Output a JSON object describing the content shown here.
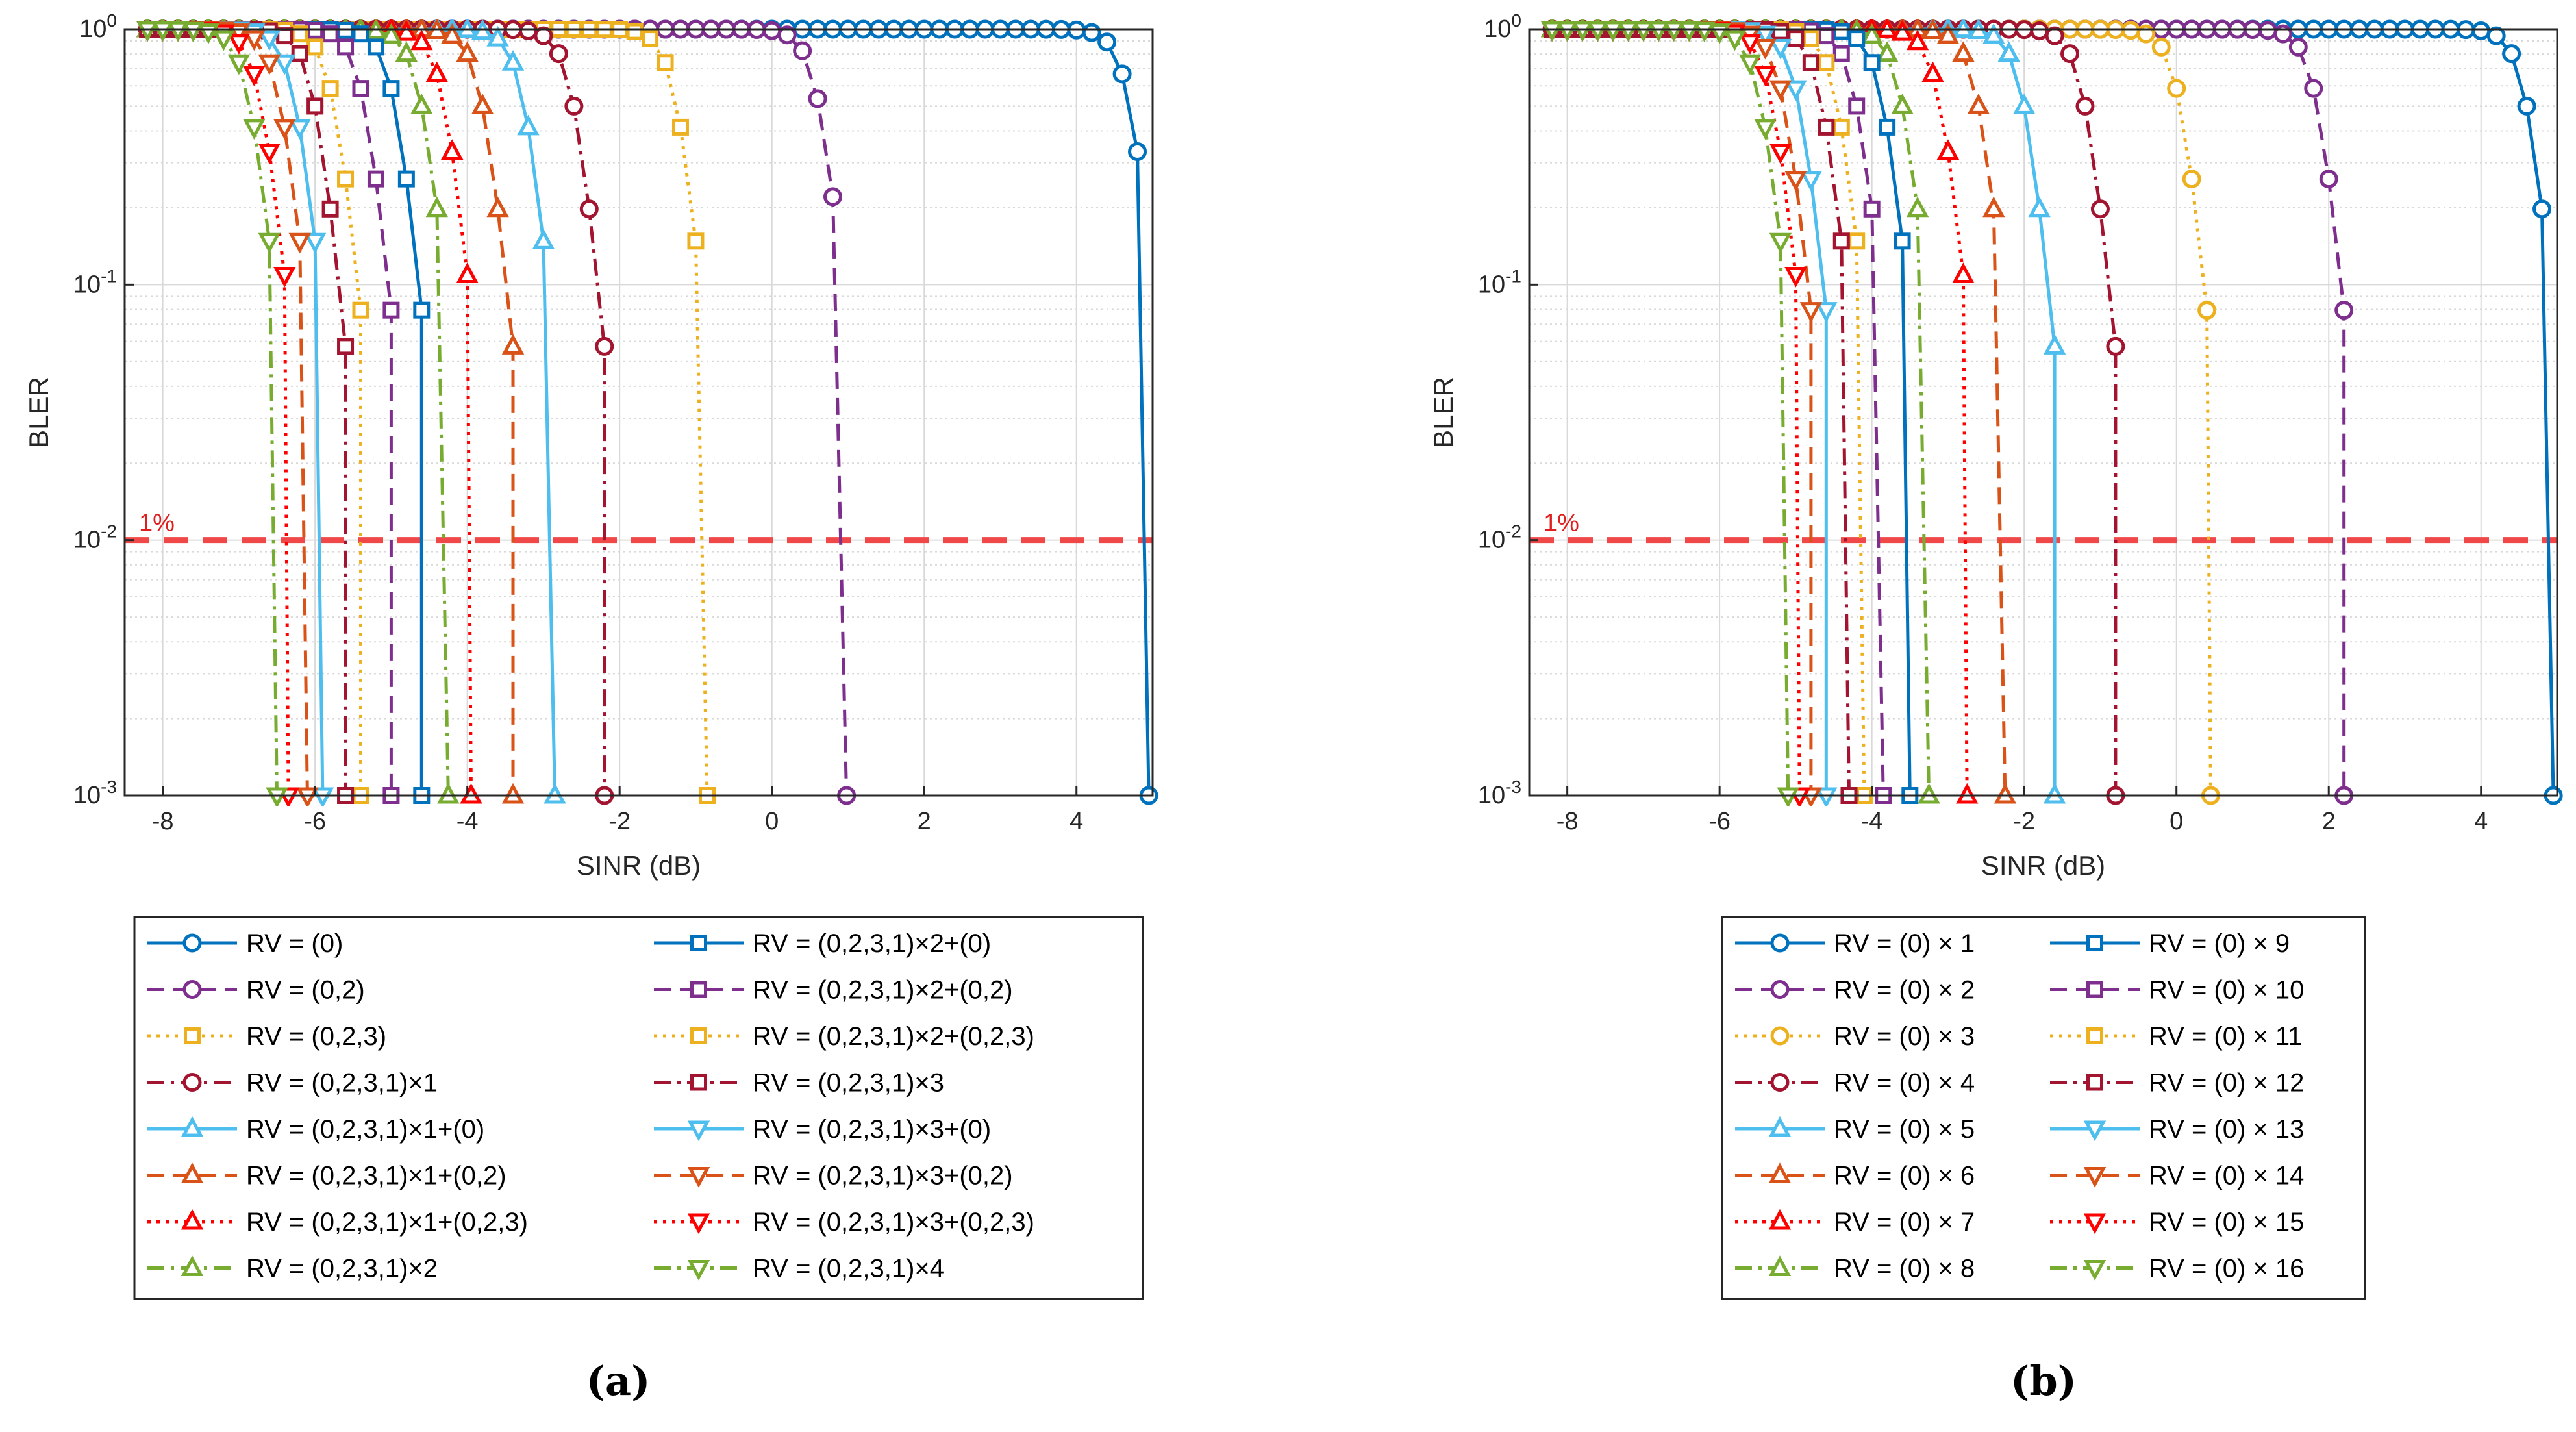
{
  "figure": {
    "reference_line": {
      "value": 0.01,
      "label": "1%",
      "color": "#f04848"
    },
    "axis_color": "#262626",
    "grid_color": "#d9d9d9"
  },
  "chart_data": [
    {
      "type": "line",
      "id": "a",
      "caption": "(a)",
      "xlabel": "SINR (dB)",
      "ylabel": "BLER",
      "yscale": "log",
      "xlim": [
        -8.5,
        5
      ],
      "ylim": [
        0.001,
        1
      ],
      "xticks": [
        -8,
        -6,
        -4,
        -2,
        0,
        2,
        4
      ],
      "yticks": [
        {
          "value": 0.001,
          "base": "10",
          "exp": "-3"
        },
        {
          "value": 0.01,
          "base": "10",
          "exp": "-2"
        },
        {
          "value": 0.1,
          "base": "10",
          "exp": "-1"
        },
        {
          "value": 1,
          "base": "10",
          "exp": "0"
        }
      ],
      "legend_columns": 2,
      "series": [
        {
          "name": "RV = (0)",
          "color": "#0072bd",
          "marker": "circle",
          "dash": "solid",
          "threshold": 4.7,
          "slope": 7.0,
          "floor": 4.95
        },
        {
          "name": "RV = (0,2)",
          "color": "#7e2f8e",
          "marker": "circle",
          "dash": "dashed",
          "threshold": 0.62,
          "slope": 7.0,
          "floor": 0.98
        },
        {
          "name": "RV = (0,2,3)",
          "color": "#edb120",
          "marker": "square",
          "dash": "dotted",
          "threshold": -1.25,
          "slope": 7.0,
          "floor": -0.85
        },
        {
          "name": "RV = (0,2,3,1)×1",
          "color": "#a2142f",
          "marker": "circle",
          "dash": "dashdot",
          "threshold": -2.6,
          "slope": 7.0,
          "floor": -2.2
        },
        {
          "name": "RV = (0,2,3,1)×1+(0)",
          "color": "#4dbeee",
          "marker": "triangle-up",
          "dash": "solid",
          "threshold": -3.25,
          "slope": 7.0,
          "floor": -2.85
        },
        {
          "name": "RV = (0,2,3,1)×1+(0,2)",
          "color": "#d95319",
          "marker": "triangle-up",
          "dash": "dashed",
          "threshold": -3.8,
          "slope": 7.0,
          "floor": -3.4
        },
        {
          "name": "RV = (0,2,3,1)×1+(0,2,3)",
          "color": "#ff0000",
          "marker": "triangle-up",
          "dash": "dotted",
          "threshold": -4.3,
          "slope": 7.0,
          "floor": -3.95
        },
        {
          "name": "RV = (0,2,3,1)×2",
          "color": "#77ac30",
          "marker": "triangle-up",
          "dash": "dashdot",
          "threshold": -4.6,
          "slope": 7.0,
          "floor": -4.25
        },
        {
          "name": "RV = (0,2,3,1)×2+(0)",
          "color": "#0072bd",
          "marker": "square",
          "dash": "solid",
          "threshold": -4.95,
          "slope": 7.0,
          "floor": -4.6
        },
        {
          "name": "RV = (0,2,3,1)×2+(0,2)",
          "color": "#7e2f8e",
          "marker": "square",
          "dash": "dashed",
          "threshold": -5.35,
          "slope": 7.0,
          "floor": -5.0
        },
        {
          "name": "RV = (0,2,3,1)×2+(0,2,3)",
          "color": "#edb120",
          "marker": "square",
          "dash": "dotted",
          "threshold": -5.75,
          "slope": 7.0,
          "floor": -5.4
        },
        {
          "name": "RV = (0,2,3,1)×3",
          "color": "#a2142f",
          "marker": "square",
          "dash": "dashdot",
          "threshold": -6.0,
          "slope": 7.0,
          "floor": -5.6
        },
        {
          "name": "RV = (0,2,3,1)×3+(0)",
          "color": "#4dbeee",
          "marker": "triangle-down",
          "dash": "solid",
          "threshold": -6.25,
          "slope": 7.0,
          "floor": -5.9
        },
        {
          "name": "RV = (0,2,3,1)×3+(0,2)",
          "color": "#d95319",
          "marker": "triangle-down",
          "dash": "dashed",
          "threshold": -6.45,
          "slope": 7.0,
          "floor": -6.1
        },
        {
          "name": "RV = (0,2,3,1)×3+(0,2,3)",
          "color": "#ff0000",
          "marker": "triangle-down",
          "dash": "dotted",
          "threshold": -6.7,
          "slope": 7.0,
          "floor": -6.35
        },
        {
          "name": "RV = (0,2,3,1)×4",
          "color": "#77ac30",
          "marker": "triangle-down",
          "dash": "dashdot",
          "threshold": -6.85,
          "slope": 7.0,
          "floor": -6.5
        }
      ]
    },
    {
      "type": "line",
      "id": "b",
      "caption": "(b)",
      "xlabel": "SINR (dB)",
      "ylabel": "BLER",
      "yscale": "log",
      "xlim": [
        -8.5,
        5
      ],
      "ylim": [
        0.001,
        1
      ],
      "xticks": [
        -8,
        -6,
        -4,
        -2,
        0,
        2,
        4
      ],
      "yticks": [
        {
          "value": 0.001,
          "base": "10",
          "exp": "-3"
        },
        {
          "value": 0.01,
          "base": "10",
          "exp": "-2"
        },
        {
          "value": 0.1,
          "base": "10",
          "exp": "-1"
        },
        {
          "value": 1,
          "base": "10",
          "exp": "0"
        }
      ],
      "legend_columns": 2,
      "series": [
        {
          "name": "RV = (0) × 1",
          "color": "#0072bd",
          "marker": "circle",
          "dash": "solid",
          "threshold": 4.6,
          "slope": 7.0,
          "floor": 4.95
        },
        {
          "name": "RV = (0) × 2",
          "color": "#7e2f8e",
          "marker": "circle",
          "dash": "dashed",
          "threshold": 1.85,
          "slope": 7.0,
          "floor": 2.2
        },
        {
          "name": "RV = (0) × 3",
          "color": "#edb120",
          "marker": "circle",
          "dash": "dotted",
          "threshold": 0.05,
          "slope": 7.0,
          "floor": 0.45
        },
        {
          "name": "RV = (0) × 4",
          "color": "#a2142f",
          "marker": "circle",
          "dash": "dashdot",
          "threshold": -1.2,
          "slope": 7.0,
          "floor": -0.8
        },
        {
          "name": "RV = (0) × 5",
          "color": "#4dbeee",
          "marker": "triangle-up",
          "dash": "solid",
          "threshold": -2.0,
          "slope": 7.0,
          "floor": -1.6
        },
        {
          "name": "RV = (0) × 6",
          "color": "#d95319",
          "marker": "triangle-up",
          "dash": "dashed",
          "threshold": -2.6,
          "slope": 7.0,
          "floor": -2.25
        },
        {
          "name": "RV = (0) × 7",
          "color": "#ff0000",
          "marker": "triangle-up",
          "dash": "dotted",
          "threshold": -3.1,
          "slope": 7.0,
          "floor": -2.75
        },
        {
          "name": "RV = (0) × 8",
          "color": "#77ac30",
          "marker": "triangle-up",
          "dash": "dashdot",
          "threshold": -3.6,
          "slope": 7.0,
          "floor": -3.25
        },
        {
          "name": "RV = (0) × 9",
          "color": "#0072bd",
          "marker": "square",
          "dash": "solid",
          "threshold": -3.85,
          "slope": 7.0,
          "floor": -3.5
        },
        {
          "name": "RV = (0) × 10",
          "color": "#7e2f8e",
          "marker": "square",
          "dash": "dashed",
          "threshold": -4.2,
          "slope": 7.0,
          "floor": -3.85
        },
        {
          "name": "RV = (0) × 11",
          "color": "#edb120",
          "marker": "square",
          "dash": "dotted",
          "threshold": -4.45,
          "slope": 7.0,
          "floor": -4.1
        },
        {
          "name": "RV = (0) × 12",
          "color": "#a2142f",
          "marker": "square",
          "dash": "dashdot",
          "threshold": -4.65,
          "slope": 7.0,
          "floor": -4.3
        },
        {
          "name": "RV = (0) × 13",
          "color": "#4dbeee",
          "marker": "triangle-down",
          "dash": "solid",
          "threshold": -4.95,
          "slope": 7.0,
          "floor": -4.6
        },
        {
          "name": "RV = (0) × 14",
          "color": "#d95319",
          "marker": "triangle-down",
          "dash": "dashed",
          "threshold": -5.15,
          "slope": 7.0,
          "floor": -4.8
        },
        {
          "name": "RV = (0) × 15",
          "color": "#ff0000",
          "marker": "triangle-down",
          "dash": "dotted",
          "threshold": -5.3,
          "slope": 7.0,
          "floor": -4.95
        },
        {
          "name": "RV = (0) × 16",
          "color": "#77ac30",
          "marker": "triangle-down",
          "dash": "dashdot",
          "threshold": -5.45,
          "slope": 7.0,
          "floor": -5.1
        }
      ]
    }
  ]
}
